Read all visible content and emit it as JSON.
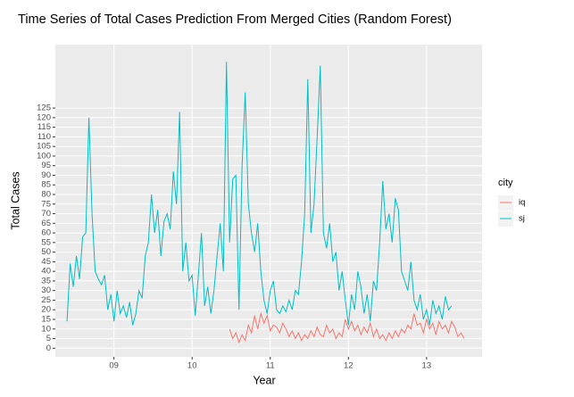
{
  "chart_data": {
    "type": "line",
    "title": "Time Series of Total Cases Prediction From Merged Cities (Random Forest)",
    "x_label": "Year",
    "y_label": "Total Cases",
    "legend_title": "city",
    "legend": "right",
    "grid": true,
    "xlim": [
      8.25,
      13.71
    ],
    "ylim": [
      -4.5,
      158
    ],
    "xticks": [
      {
        "value": 9,
        "label": "09"
      },
      {
        "value": 10,
        "label": "10"
      },
      {
        "value": 11,
        "label": "11"
      },
      {
        "value": 12,
        "label": "12"
      },
      {
        "value": 13,
        "label": "13"
      }
    ],
    "yticks": [
      0,
      5,
      10,
      15,
      20,
      25,
      30,
      35,
      40,
      45,
      50,
      55,
      60,
      65,
      70,
      75,
      80,
      85,
      90,
      95,
      100,
      105,
      110,
      115,
      120,
      125
    ],
    "series": [
      {
        "name": "iq",
        "color": "#F8766D",
        "x": [
          10.48,
          10.52,
          10.56,
          10.6,
          10.64,
          10.68,
          10.72,
          10.76,
          10.8,
          10.84,
          10.88,
          10.92,
          10.96,
          11,
          11.04,
          11.08,
          11.12,
          11.16,
          11.2,
          11.24,
          11.28,
          11.32,
          11.36,
          11.4,
          11.44,
          11.48,
          11.52,
          11.56,
          11.6,
          11.64,
          11.68,
          11.72,
          11.76,
          11.8,
          11.84,
          11.88,
          11.92,
          11.96,
          12,
          12.04,
          12.08,
          12.12,
          12.16,
          12.2,
          12.24,
          12.28,
          12.32,
          12.36,
          12.4,
          12.44,
          12.48,
          12.52,
          12.56,
          12.6,
          12.64,
          12.68,
          12.72,
          12.76,
          12.8,
          12.84,
          12.88,
          12.92,
          12.96,
          13,
          13.04,
          13.08,
          13.12,
          13.16,
          13.2,
          13.24,
          13.28,
          13.32,
          13.36,
          13.4,
          13.44,
          13.48
        ],
        "values": [
          10,
          5,
          8,
          3,
          7,
          4,
          12,
          8,
          17,
          10,
          18,
          13,
          17,
          9,
          12,
          11,
          8,
          13,
          10,
          6,
          9,
          5,
          8,
          4,
          7,
          5,
          9,
          6,
          11,
          7,
          6,
          12,
          8,
          10,
          5,
          8,
          6,
          15,
          10,
          14,
          9,
          12,
          7,
          11,
          8,
          13,
          6,
          10,
          5,
          7,
          4,
          8,
          5,
          9,
          6,
          10,
          8,
          12,
          10,
          18,
          12,
          13,
          8,
          15,
          10,
          13,
          7,
          14,
          10,
          12,
          8,
          14,
          11,
          6,
          8,
          5
        ]
      },
      {
        "name": "sj",
        "color": "#00BFC4",
        "x": [
          8.4,
          8.44,
          8.48,
          8.52,
          8.56,
          8.6,
          8.64,
          8.68,
          8.72,
          8.76,
          8.8,
          8.84,
          8.88,
          8.92,
          8.96,
          9,
          9.04,
          9.08,
          9.12,
          9.16,
          9.2,
          9.24,
          9.28,
          9.32,
          9.36,
          9.4,
          9.44,
          9.48,
          9.52,
          9.56,
          9.6,
          9.64,
          9.68,
          9.72,
          9.76,
          9.8,
          9.84,
          9.88,
          9.92,
          9.96,
          10,
          10.04,
          10.08,
          10.12,
          10.16,
          10.2,
          10.24,
          10.28,
          10.32,
          10.36,
          10.4,
          10.44,
          10.48,
          10.52,
          10.56,
          10.6,
          10.64,
          10.68,
          10.72,
          10.76,
          10.8,
          10.84,
          10.88,
          10.92,
          10.96,
          11,
          11.04,
          11.08,
          11.12,
          11.16,
          11.2,
          11.24,
          11.28,
          11.32,
          11.36,
          11.4,
          11.44,
          11.48,
          11.52,
          11.56,
          11.6,
          11.64,
          11.68,
          11.72,
          11.76,
          11.8,
          11.84,
          11.88,
          11.92,
          11.96,
          12,
          12.04,
          12.08,
          12.12,
          12.16,
          12.2,
          12.24,
          12.28,
          12.32,
          12.36,
          12.4,
          12.44,
          12.48,
          12.52,
          12.56,
          12.6,
          12.64,
          12.68,
          12.72,
          12.76,
          12.8,
          12.84,
          12.88,
          12.92,
          12.96,
          13,
          13.04,
          13.08,
          13.12,
          13.16,
          13.2,
          13.24,
          13.28,
          13.32
        ],
        "values": [
          14,
          44,
          32,
          48,
          36,
          58,
          60,
          120,
          70,
          40,
          36,
          33,
          38,
          20,
          28,
          14,
          30,
          18,
          22,
          16,
          24,
          12,
          18,
          30,
          26,
          48,
          55,
          80,
          60,
          72,
          48,
          66,
          70,
          62,
          92,
          75,
          123,
          40,
          55,
          35,
          38,
          17,
          38,
          60,
          22,
          32,
          18,
          30,
          48,
          65,
          40,
          149,
          55,
          88,
          90,
          20,
          95,
          133,
          75,
          60,
          50,
          65,
          40,
          25,
          18,
          30,
          35,
          20,
          18,
          22,
          19,
          25,
          20,
          30,
          28,
          45,
          70,
          140,
          60,
          75,
          110,
          147,
          60,
          52,
          65,
          45,
          50,
          30,
          40,
          25,
          12,
          28,
          20,
          40,
          32,
          18,
          28,
          14,
          35,
          30,
          55,
          87,
          62,
          70,
          55,
          78,
          72,
          40,
          35,
          30,
          45,
          25,
          20,
          28,
          15,
          20,
          12,
          25,
          18,
          22,
          15,
          27,
          20,
          22
        ]
      }
    ]
  }
}
